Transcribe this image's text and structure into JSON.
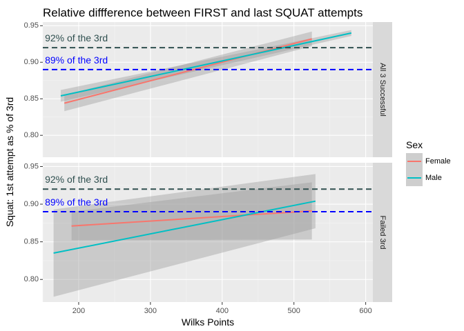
{
  "chart_data": {
    "type": "line",
    "title": "Relative diffference between FIRST and last SQUAT attempts",
    "xlabel": "Wilks Points",
    "ylabel": "Squat: 1st attempt as % of 3rd",
    "xlim": [
      150,
      610
    ],
    "ylim": [
      0.77,
      0.955
    ],
    "x_ticks": [
      200,
      300,
      400,
      500,
      600
    ],
    "x_tick_labels": [
      "200",
      "300",
      "400",
      "500",
      "600"
    ],
    "y_ticks": [
      0.8,
      0.85,
      0.9,
      0.95
    ],
    "y_tick_labels": [
      "0.80",
      "0.85",
      "0.90",
      "0.95"
    ],
    "grid": true,
    "legend": {
      "title": "Sex",
      "position": "right",
      "items": [
        {
          "label": "Female",
          "color": "#F8766D"
        },
        {
          "label": "Male",
          "color": "#00BFC4"
        }
      ]
    },
    "colors": {
      "female": "#F8766D",
      "male": "#00BFC4",
      "ribbon": "#999999",
      "hline_92": "#2F4F4F",
      "hline_89": "#0000FF",
      "panel_bg": "#EBEBEB",
      "strip_bg": "#D9D9D9"
    },
    "hlines": [
      {
        "y": 0.92,
        "label": "92% of the 3rd",
        "color": "#2F4F4F"
      },
      {
        "y": 0.89,
        "label": "89% of the 3rd",
        "color": "#0000FF"
      }
    ],
    "annotation_x": 153,
    "panels": [
      {
        "strip": "All 3 Successful",
        "series": [
          {
            "name": "Female",
            "x": [
              180,
              525
            ],
            "y": [
              0.844,
              0.932
            ],
            "lower": [
              0.833,
              0.922
            ],
            "upper": [
              0.855,
              0.942
            ]
          },
          {
            "name": "Male",
            "x": [
              175,
              580
            ],
            "y": [
              0.854,
              0.94
            ],
            "lower": [
              0.846,
              0.936
            ],
            "upper": [
              0.862,
              0.944
            ]
          }
        ]
      },
      {
        "strip": "Failed 3rd",
        "series": [
          {
            "name": "Female",
            "x": [
              190,
              525
            ],
            "y": [
              0.871,
              0.891
            ],
            "lower": [
              0.852,
              0.853
            ],
            "upper": [
              0.89,
              0.929
            ]
          },
          {
            "name": "Male",
            "x": [
              165,
              530
            ],
            "y": [
              0.835,
              0.904
            ],
            "lower": [
              0.777,
              0.868
            ],
            "upper": [
              0.893,
              0.94
            ]
          }
        ]
      }
    ]
  }
}
